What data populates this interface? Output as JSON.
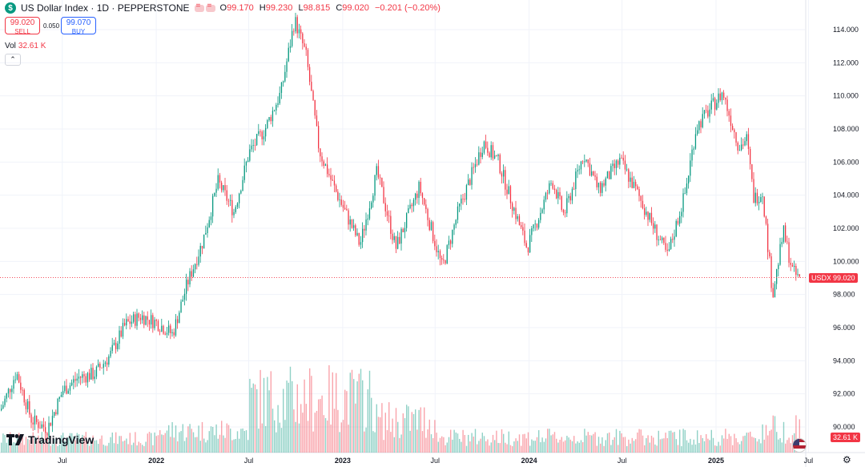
{
  "header": {
    "badge": "$",
    "title": "US Dollar Index · 1D · PEPPERSTONE",
    "ohlc": [
      {
        "k": "O",
        "v": "99.170"
      },
      {
        "k": "H",
        "v": "99.230"
      },
      {
        "k": "L",
        "v": "98.815"
      },
      {
        "k": "C",
        "v": "99.020"
      },
      {
        "k": "",
        "v": "−0.201 (−0.20%)"
      }
    ]
  },
  "trade": {
    "sell_price": "99.020",
    "sell_label": "SELL",
    "spread": "0.050",
    "buy_price": "99.070",
    "buy_label": "BUY"
  },
  "volume": {
    "label": "Vol",
    "value": "32.61 K"
  },
  "logo": "TradingView",
  "price_tags": {
    "symbol": "USDX",
    "last": "99.020",
    "volume": "32.61 K"
  },
  "colors": {
    "up": "#089981",
    "down": "#f23645",
    "grid": "#f0f3fa",
    "text": "#131722"
  },
  "icons": {
    "collapse": "chevron-up-icon",
    "settings": "gear-icon",
    "flag": "us-flag-icon"
  },
  "chart_data": {
    "type": "candlestick",
    "symbol": "USDX",
    "title": "US Dollar Index · 1D · PEPPERSTONE",
    "y_ticks": [
      "114.000",
      "112.000",
      "110.000",
      "108.000",
      "106.000",
      "104.000",
      "102.000",
      "100.000",
      "98.000",
      "96.000",
      "94.000",
      "92.000",
      "90.000"
    ],
    "ylim": [
      89,
      115
    ],
    "x_ticks": [
      "Jul",
      "2022",
      "Jul",
      "2023",
      "Jul",
      "2024",
      "Jul",
      "2025",
      "Jul"
    ],
    "price_path": [
      [
        "2021-03-01",
        91.0
      ],
      [
        "2021-04-01",
        93.3
      ],
      [
        "2021-05-01",
        90.4
      ],
      [
        "2021-06-01",
        89.9
      ],
      [
        "2021-07-01",
        92.2
      ],
      [
        "2021-08-01",
        93.0
      ],
      [
        "2021-09-01",
        93.2
      ],
      [
        "2021-10-01",
        94.3
      ],
      [
        "2021-11-01",
        96.2
      ],
      [
        "2021-12-01",
        96.7
      ],
      [
        "2022-01-01",
        96.3
      ],
      [
        "2022-02-01",
        95.6
      ],
      [
        "2022-03-01",
        98.6
      ],
      [
        "2022-04-01",
        101.2
      ],
      [
        "2022-05-01",
        104.8
      ],
      [
        "2022-06-01",
        103.0
      ],
      [
        "2022-07-01",
        106.6
      ],
      [
        "2022-08-01",
        108.0
      ],
      [
        "2022-09-01",
        110.2
      ],
      [
        "2022-09-28",
        114.6
      ],
      [
        "2022-10-20",
        112.5
      ],
      [
        "2022-11-15",
        106.7
      ],
      [
        "2022-12-15",
        104.4
      ],
      [
        "2023-01-15",
        102.3
      ],
      [
        "2023-02-03",
        101.0
      ],
      [
        "2023-03-08",
        105.4
      ],
      [
        "2023-04-14",
        100.8
      ],
      [
        "2023-05-30",
        104.5
      ],
      [
        "2023-07-14",
        99.6
      ],
      [
        "2023-08-15",
        103.1
      ],
      [
        "2023-10-03",
        107.2
      ],
      [
        "2023-11-01",
        106.0
      ],
      [
        "2023-12-27",
        100.8
      ],
      [
        "2024-02-14",
        104.9
      ],
      [
        "2024-03-08",
        102.8
      ],
      [
        "2024-04-16",
        106.5
      ],
      [
        "2024-05-15",
        104.3
      ],
      [
        "2024-06-26",
        106.1
      ],
      [
        "2024-08-01",
        104.0
      ],
      [
        "2024-09-27",
        100.3
      ],
      [
        "2024-11-01",
        104.2
      ],
      [
        "2024-11-22",
        108.1
      ],
      [
        "2025-01-13",
        110.2
      ],
      [
        "2025-02-14",
        106.9
      ],
      [
        "2025-03-01",
        107.4
      ],
      [
        "2025-03-15",
        103.8
      ],
      [
        "2025-04-01",
        104.2
      ],
      [
        "2025-04-21",
        98.0
      ],
      [
        "2025-05-12",
        101.8
      ],
      [
        "2025-05-30",
        99.4
      ],
      [
        "2025-06-10",
        99.0
      ]
    ],
    "last_price": 99.02,
    "volume_last": "32.61 K",
    "grid": true,
    "legend": "top-left"
  }
}
